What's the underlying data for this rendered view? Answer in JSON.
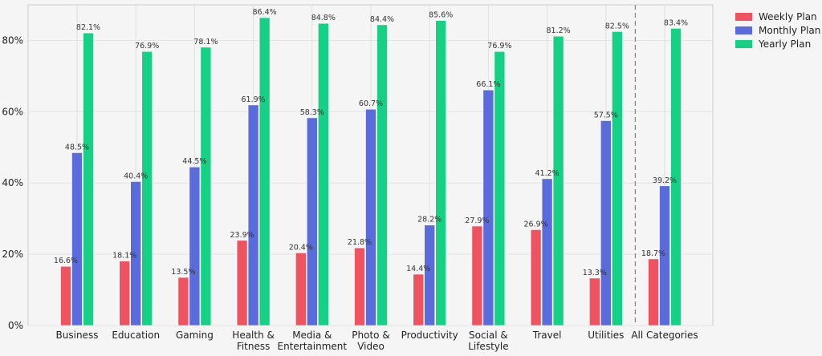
{
  "chart_data": {
    "type": "bar",
    "title": "",
    "xlabel": "",
    "ylabel": "",
    "ylim": [
      0,
      90
    ],
    "yticks": [
      0,
      20,
      40,
      60,
      80
    ],
    "ytick_labels": [
      "0%",
      "20%",
      "40%",
      "60%",
      "80%"
    ],
    "grid": true,
    "legend_position": "top-right",
    "categories": [
      [
        "Business"
      ],
      [
        "Education"
      ],
      [
        "Gaming"
      ],
      [
        "Health &",
        "Fitness"
      ],
      [
        "Media &",
        "Entertainment"
      ],
      [
        "Photo &",
        "Video"
      ],
      [
        "Productivity"
      ],
      [
        "Social &",
        "Lifestyle"
      ],
      [
        "Travel"
      ],
      [
        "Utilities"
      ],
      [
        "All Categories"
      ]
    ],
    "separator_before_index": 10,
    "series": [
      {
        "name": "Weekly Plan",
        "color": "#ef5360",
        "values": [
          16.6,
          18.1,
          13.5,
          23.9,
          20.4,
          21.8,
          14.4,
          27.9,
          26.9,
          13.3,
          18.7
        ],
        "labels": [
          "16.6%",
          "18.1%",
          "13.5%",
          "23.9%",
          "20.4%",
          "21.8%",
          "14.4%",
          "27.9%",
          "26.9%",
          "13.3%",
          "18.7%"
        ]
      },
      {
        "name": "Monthly Plan",
        "color": "#5a6bdc",
        "values": [
          48.5,
          40.4,
          44.5,
          61.9,
          58.3,
          60.7,
          28.2,
          66.1,
          41.2,
          57.5,
          39.2
        ],
        "labels": [
          "48.5%",
          "40.4%",
          "44.5%",
          "61.9%",
          "58.3%",
          "60.7%",
          "28.2%",
          "66.1%",
          "41.2%",
          "57.5%",
          "39.2%"
        ]
      },
      {
        "name": "Yearly Plan",
        "color": "#16d185",
        "values": [
          82.1,
          76.9,
          78.1,
          86.4,
          84.8,
          84.4,
          85.6,
          76.9,
          81.2,
          82.5,
          83.4
        ],
        "labels": [
          "82.1%",
          "76.9%",
          "78.1%",
          "86.4%",
          "84.8%",
          "84.4%",
          "85.6%",
          "76.9%",
          "81.2%",
          "82.5%",
          "83.4%"
        ]
      }
    ]
  }
}
